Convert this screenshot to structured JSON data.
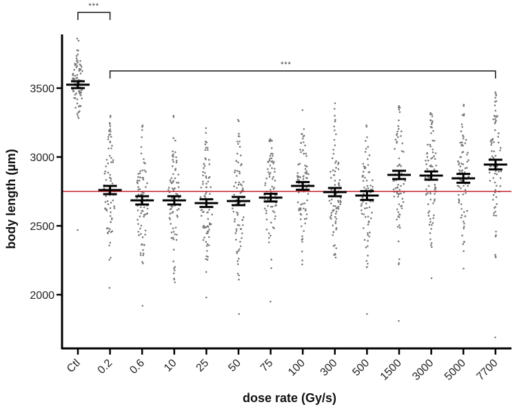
{
  "chart_data": {
    "type": "scatter",
    "subtype": "dot-plot with mean ± SEM",
    "title": "",
    "xlabel": "dose rate (Gy/s)",
    "ylabel": "body length (µm)",
    "ylim": [
      1650,
      3900
    ],
    "yticks": [
      2000,
      2500,
      3000,
      3500
    ],
    "categories": [
      "Ctl",
      "0.2",
      "0.6",
      "10",
      "25",
      "50",
      "75",
      "100",
      "300",
      "500",
      "1500",
      "3000",
      "5000",
      "7700"
    ],
    "means": [
      3525,
      2760,
      2685,
      2685,
      2665,
      2680,
      2705,
      2790,
      2745,
      2720,
      2870,
      2865,
      2845,
      2945
    ],
    "sem": [
      25,
      30,
      30,
      30,
      28,
      30,
      28,
      28,
      30,
      32,
      30,
      30,
      32,
      35
    ],
    "ranges": [
      {
        "min": 2470,
        "max": 3860
      },
      {
        "min": 2050,
        "max": 3300
      },
      {
        "min": 1920,
        "max": 3230
      },
      {
        "min": 2090,
        "max": 3300
      },
      {
        "min": 1980,
        "max": 3210
      },
      {
        "min": 1860,
        "max": 3270
      },
      {
        "min": 1950,
        "max": 3130
      },
      {
        "min": 2220,
        "max": 3340
      },
      {
        "min": 2270,
        "max": 3390
      },
      {
        "min": 1860,
        "max": 3230
      },
      {
        "min": 1810,
        "max": 3370
      },
      {
        "min": 2120,
        "max": 3320
      },
      {
        "min": 2190,
        "max": 3380
      },
      {
        "min": 1690,
        "max": 3470
      }
    ],
    "n_per_group": 80,
    "reference_line": {
      "y": 2750,
      "color": "#c0202a",
      "label": ""
    },
    "annotations": [
      {
        "type": "bracket",
        "from": "Ctl",
        "to": "0.2",
        "text": "***"
      },
      {
        "type": "bracket",
        "from": "0.2",
        "to": "7700",
        "text": "***"
      }
    ],
    "grid": false,
    "legend": "none"
  },
  "colors": {
    "points": "#7a7a7a",
    "mean_bars": "#000000",
    "axes": "#000000",
    "reference_line": "#c0202a"
  }
}
